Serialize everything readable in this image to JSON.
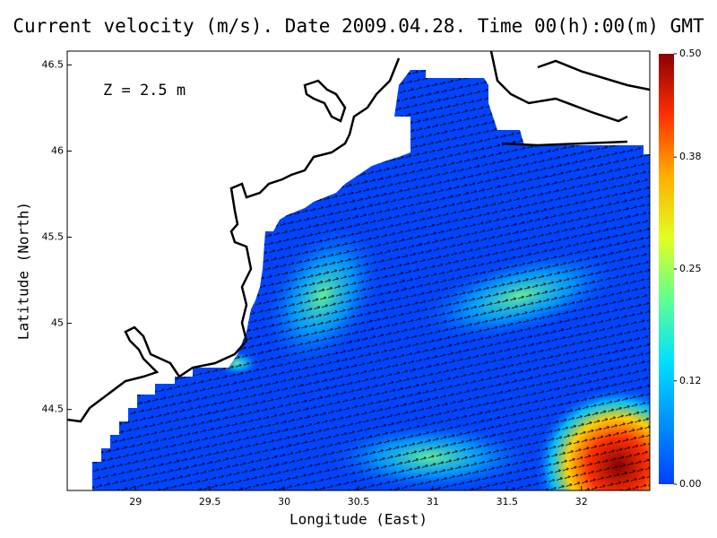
{
  "chart_data": {
    "type": "map",
    "title": "Current velocity (m/s). Date 2009.04.28. Time 00(h):00(m) GMT",
    "annotation": "Z = 2.5 m",
    "x_label": "Longitude (East)",
    "y_label": "Latitude (North)",
    "xlim": [
      28.54,
      32.46
    ],
    "xticks": [
      29,
      29.5,
      30,
      30.5,
      31,
      31.5,
      32
    ],
    "ylim": [
      44.03,
      46.58
    ],
    "yticks": [
      44.5,
      45,
      45.5,
      46,
      46.5
    ],
    "colorbar": {
      "lim": [
        0,
        0.5
      ],
      "ticks": [
        {
          "value": 0,
          "label": "0.00"
        },
        {
          "value": 0.12,
          "label": "0.12"
        },
        {
          "value": 0.25,
          "label": "0.25"
        },
        {
          "value": 0.38,
          "label": "0.38"
        },
        {
          "value": 0.5,
          "label": "0.50"
        }
      ],
      "colors": [
        "#0040ff",
        "#0090ff",
        "#00e0ff",
        "#60ff90",
        "#e0ff20",
        "#ffb000",
        "#ff3000",
        "#8b0000"
      ]
    }
  }
}
